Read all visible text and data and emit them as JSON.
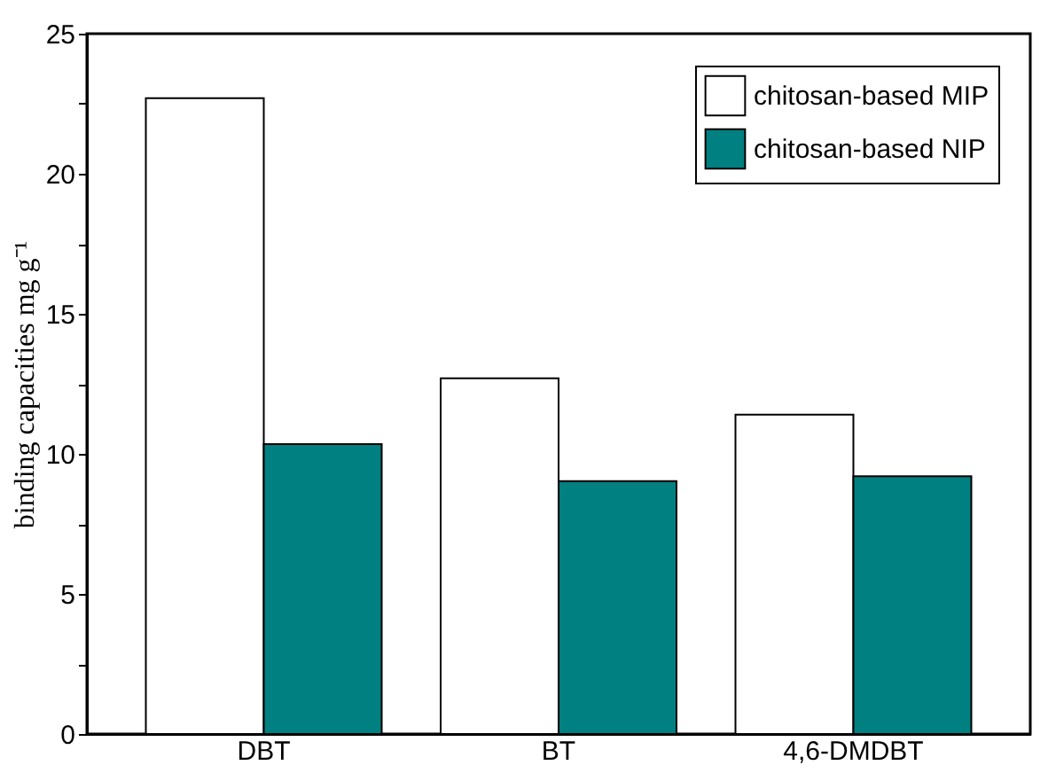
{
  "chart_data": {
    "type": "bar",
    "ylabel": "binding capacities mg g⁻¹",
    "categories": [
      "DBT",
      "BT",
      "4,6-DMDBT"
    ],
    "series": [
      {
        "name": "chitosan-based MIP",
        "color": "#ffffff",
        "values": [
          22.7,
          12.7,
          11.4
        ]
      },
      {
        "name": "chitosan-based NIP",
        "color": "#008080",
        "values": [
          10.35,
          9.03,
          9.2
        ]
      }
    ],
    "ylim": [
      0,
      25
    ],
    "yticks": [
      0,
      {
        "value": 2.5,
        "label": null
      },
      5,
      {
        "value": 7.5,
        "label": null
      },
      10,
      {
        "value": 12.5,
        "label": null
      },
      15,
      {
        "value": 17.5,
        "label": null
      },
      20,
      {
        "value": 22.5,
        "label": null
      },
      25
    ],
    "grid": false,
    "legend": "top right"
  }
}
